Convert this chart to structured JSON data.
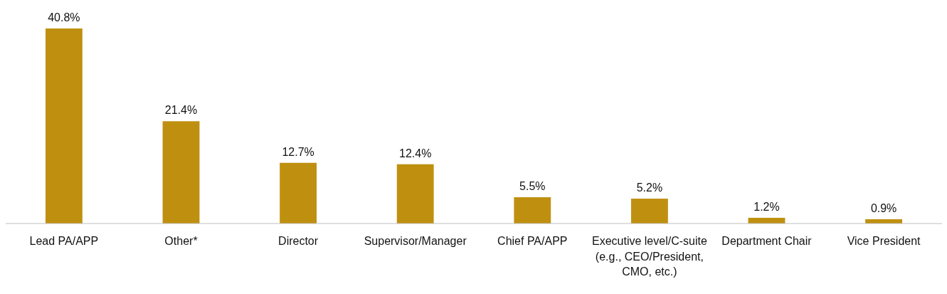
{
  "chart_data": {
    "type": "bar",
    "categories": [
      "Lead PA/APP",
      "Other*",
      "Director",
      "Supervisor/Manager",
      "Chief PA/APP",
      "Executive level/C-suite (e.g., CEO/President, CMO, etc.)",
      "Department Chair",
      "Vice President"
    ],
    "values": [
      40.8,
      21.4,
      12.7,
      12.4,
      5.5,
      5.2,
      1.2,
      0.9
    ],
    "value_labels": [
      "40.8%",
      "21.4%",
      "12.7%",
      "12.4%",
      "5.5%",
      "5.2%",
      "1.2%",
      "0.9%"
    ],
    "color": "#bf9010"
  }
}
